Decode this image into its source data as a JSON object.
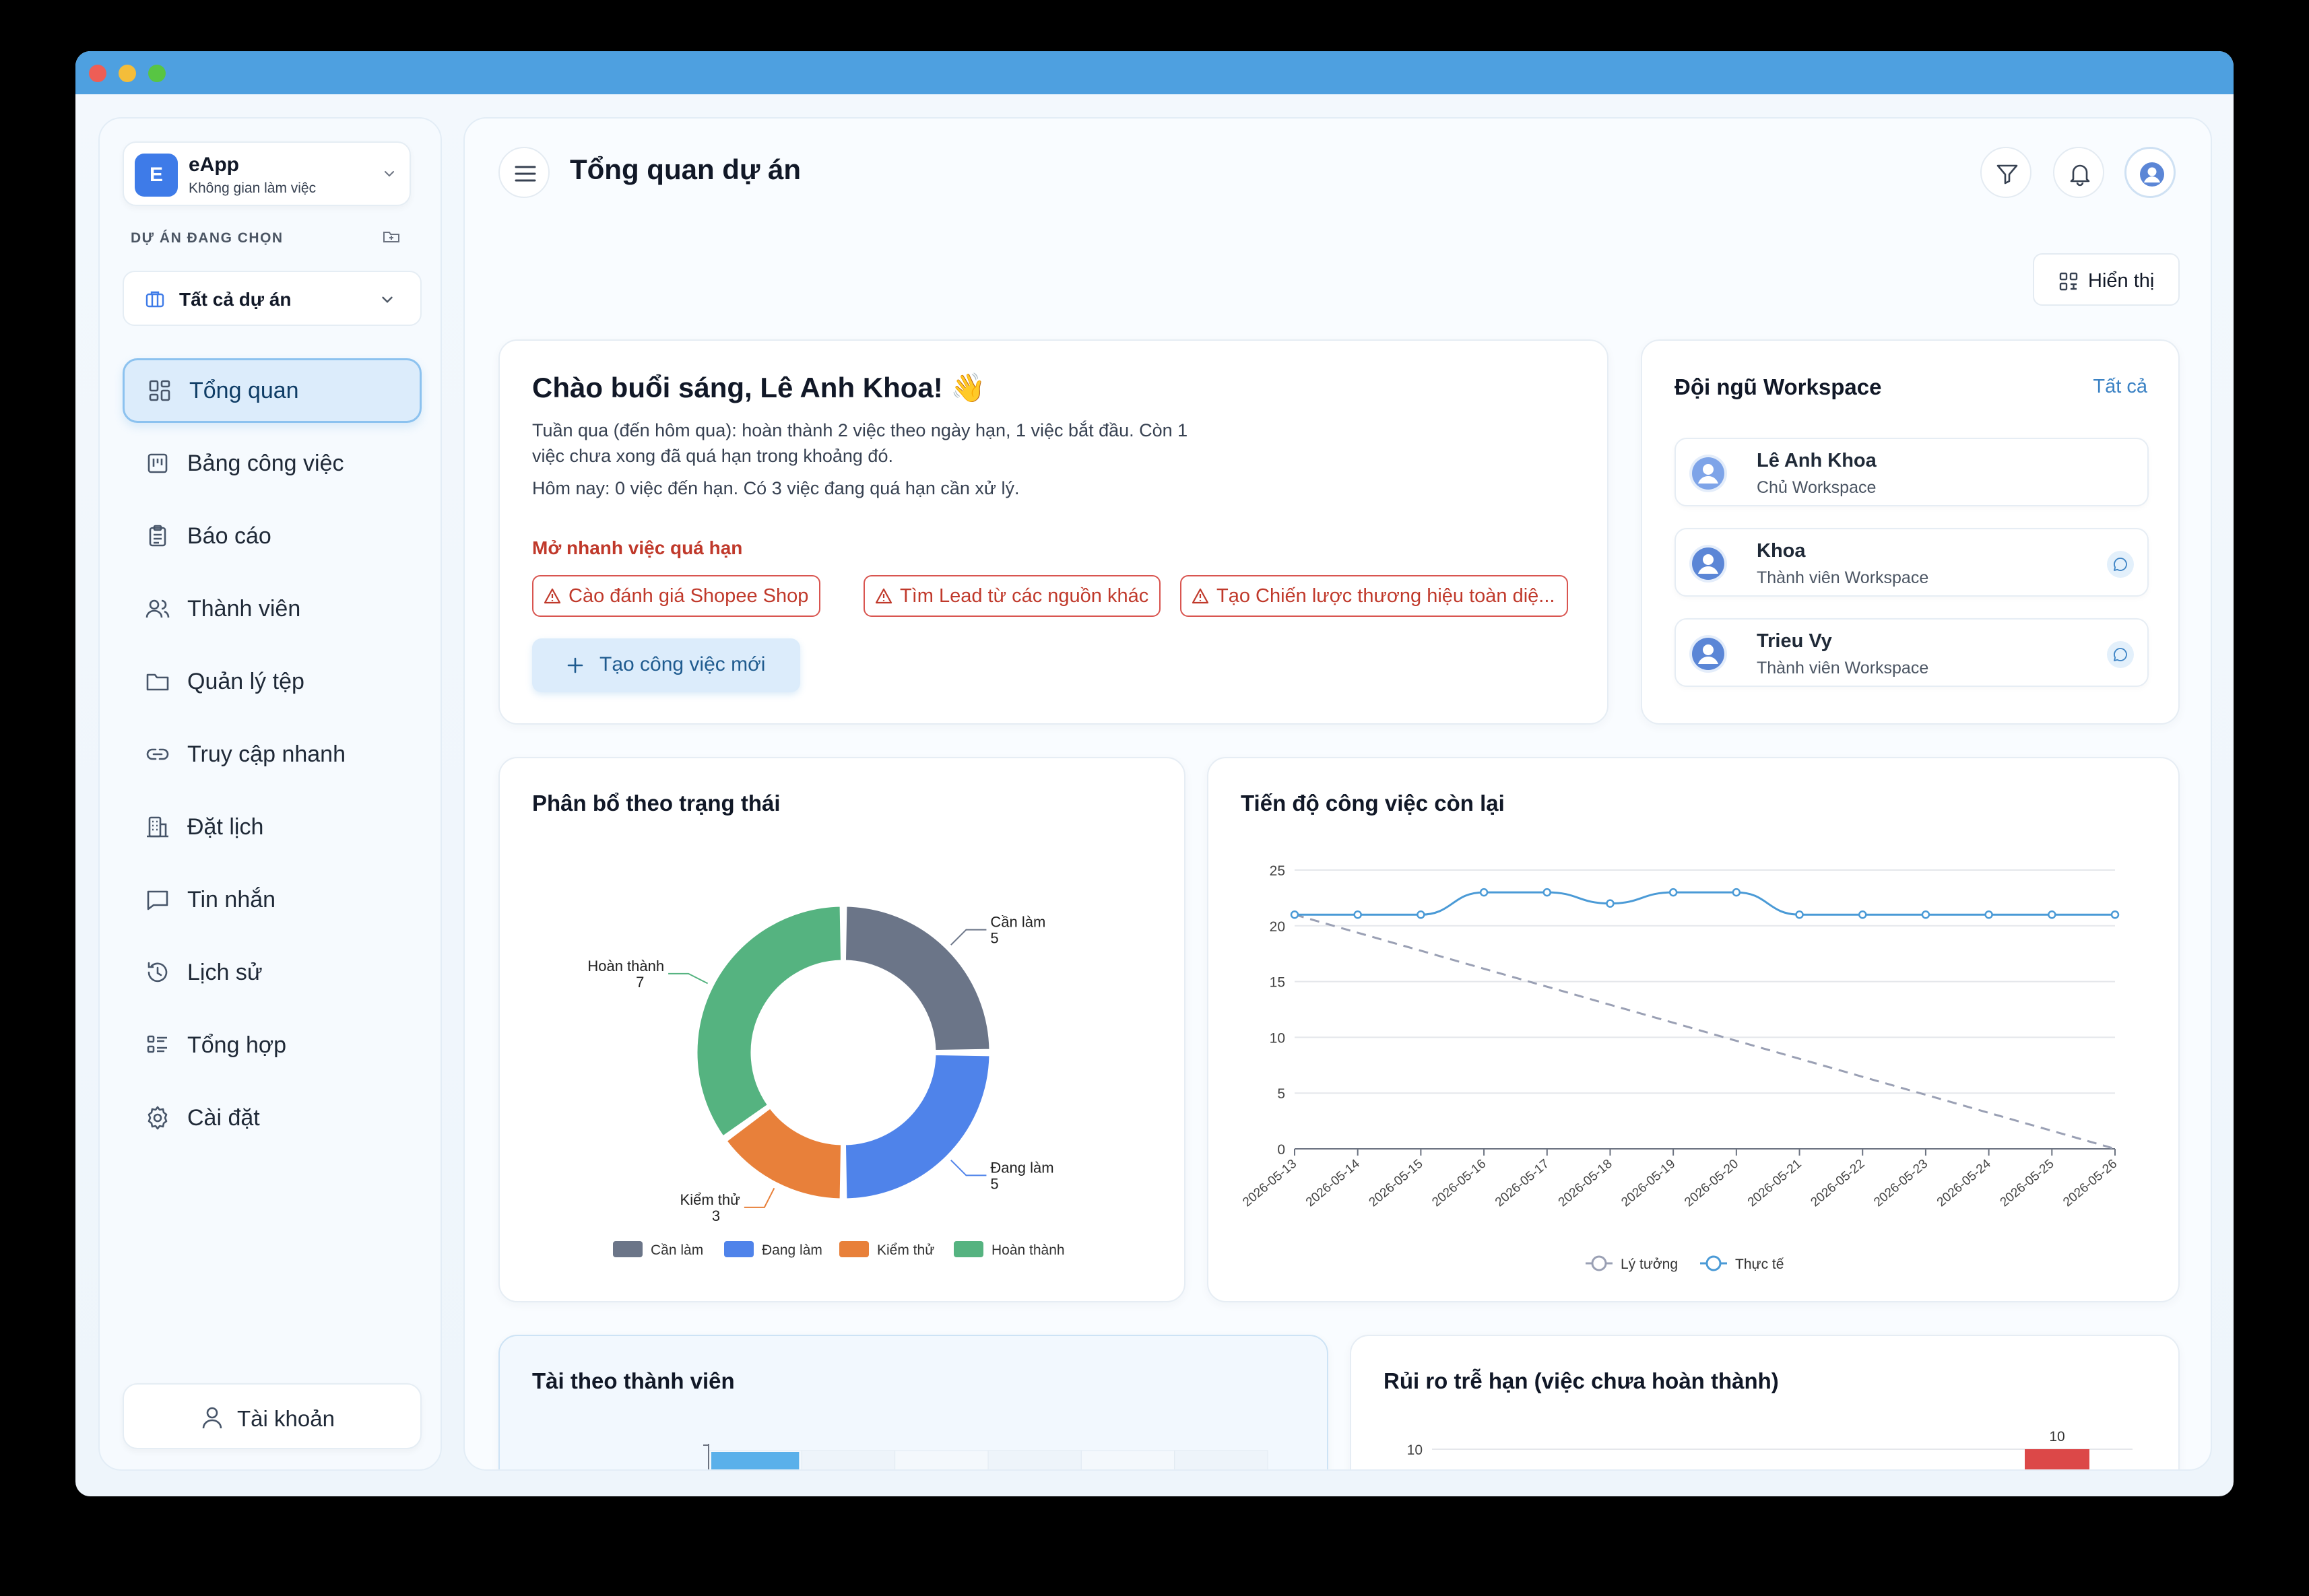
{
  "workspace": {
    "initial": "E",
    "name": "eApp",
    "subtitle": "Không gian làm việc"
  },
  "sidebar": {
    "section_label": "DỰ ÁN ĐANG CHỌN",
    "project_select": "Tất cả dự án",
    "items": [
      {
        "label": "Tổng quan",
        "icon": "grid-icon",
        "active": true
      },
      {
        "label": "Bảng công việc",
        "icon": "board-icon"
      },
      {
        "label": "Báo cáo",
        "icon": "clipboard-icon"
      },
      {
        "label": "Thành viên",
        "icon": "users-icon"
      },
      {
        "label": "Quản lý tệp",
        "icon": "folder-icon"
      },
      {
        "label": "Truy cập nhanh",
        "icon": "link-icon"
      },
      {
        "label": "Đặt lịch",
        "icon": "building-icon"
      },
      {
        "label": "Tin nhắn",
        "icon": "message-icon"
      },
      {
        "label": "Lịch sử",
        "icon": "history-icon"
      },
      {
        "label": "Tổng hợp",
        "icon": "list-icon"
      },
      {
        "label": "Cài đặt",
        "icon": "gear-icon"
      }
    ],
    "account_label": "Tài khoản"
  },
  "header": {
    "title": "Tổng quan dự án",
    "display_label": "Hiển thị"
  },
  "greeting": {
    "title": "Chào buổi sáng, Lê Anh Khoa! 👋",
    "summary": "Tuần qua (đến hôm qua): hoàn thành 2 việc theo ngày hạn, 1 việc bắt đầu. Còn 1 việc chưa xong đã quá hạn trong khoảng đó.",
    "today": "Hôm nay: 0 việc đến hạn. Có 3 việc đang quá hạn cần xử lý.",
    "quick_label": "Mở nhanh việc quá hạn",
    "overdue": [
      "Cào đánh giá Shopee Shop",
      "Tìm Lead từ các nguồn khác",
      "Tạo Chiến lược thương hiệu toàn diệ..."
    ],
    "new_task": "Tạo công việc mới"
  },
  "team": {
    "title": "Đội ngũ Workspace",
    "view_all": "Tất cả",
    "members": [
      {
        "name": "Lê Anh Khoa",
        "role": "Chủ Workspace",
        "chat": false
      },
      {
        "name": "Khoa",
        "role": "Thành viên Workspace",
        "chat": true
      },
      {
        "name": "Trieu Vy",
        "role": "Thành viên Workspace",
        "chat": true
      }
    ]
  },
  "colors": {
    "todo": "#6b7588",
    "doing": "#4f83ea",
    "testing": "#e8803a",
    "done": "#55b380",
    "line": "#4a9ad6",
    "ideal": "#9aa0b4",
    "risk": "#dc4848",
    "load": "#5ab0ea"
  },
  "chart_data": [
    {
      "type": "pie",
      "title": "Phân bổ theo trạng thái",
      "categories": [
        "Cần làm",
        "Đang làm",
        "Kiểm thử",
        "Hoàn thành"
      ],
      "values": [
        5,
        5,
        3,
        7
      ],
      "legend": "bottom"
    },
    {
      "type": "line",
      "title": "Tiến độ công việc còn lại",
      "x": [
        "2026-05-13",
        "2026-05-14",
        "2026-05-15",
        "2026-05-16",
        "2026-05-17",
        "2026-05-18",
        "2026-05-19",
        "2026-05-20",
        "2026-05-21",
        "2026-05-22",
        "2026-05-23",
        "2026-05-24",
        "2026-05-25",
        "2026-05-26"
      ],
      "series": [
        {
          "name": "Lý tưởng",
          "values": [
            21,
            19.38,
            17.77,
            16.15,
            14.54,
            12.92,
            11.31,
            9.69,
            8.08,
            6.46,
            4.85,
            3.23,
            1.62,
            0
          ]
        },
        {
          "name": "Thực tế",
          "values": [
            21,
            21,
            21,
            23,
            23,
            22,
            23,
            23,
            21,
            21,
            21,
            21,
            21,
            21
          ]
        }
      ],
      "ylim": [
        0,
        25
      ],
      "yticks": [
        0,
        5,
        10,
        15,
        20,
        25
      ],
      "legend": "bottom"
    },
    {
      "type": "bar",
      "title": "Tài theo thành viên",
      "categories": [],
      "values": []
    },
    {
      "type": "bar",
      "title": "Rủi ro trễ hạn (việc chưa hoàn thành)",
      "values": [
        10
      ],
      "data_labels": [
        "10"
      ],
      "yticks": [
        10
      ]
    }
  ]
}
